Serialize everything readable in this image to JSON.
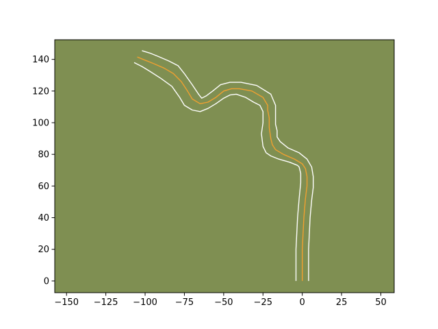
{
  "chart_data": {
    "type": "line",
    "title": "",
    "xlabel": "",
    "ylabel": "",
    "xlim": [
      -157.5,
      58.5
    ],
    "ylim": [
      -7.4,
      152.4
    ],
    "xticks": [
      -150,
      -125,
      -100,
      -75,
      -50,
      -25,
      0,
      25,
      50
    ],
    "yticks": [
      0,
      20,
      40,
      60,
      80,
      100,
      120,
      140
    ],
    "xtick_labels": [
      "−150",
      "−125",
      "−100",
      "−75",
      "−50",
      "−25",
      "0",
      "25",
      "50"
    ],
    "ytick_labels": [
      "0",
      "20",
      "40",
      "60",
      "80",
      "100",
      "120",
      "140"
    ],
    "grid": false,
    "legend": "none",
    "colors": {
      "background": "#7f8f52",
      "centerline": "#f0a030",
      "edges": "#ffffff",
      "frame": "#000000"
    },
    "series": [
      {
        "role": "centerline",
        "x": [
          0,
          0,
          1,
          2,
          3,
          3,
          2,
          0,
          -5,
          -12,
          -17,
          -19,
          -20,
          -21,
          -21,
          -22,
          -22,
          -25,
          -32,
          -40,
          -45,
          -50,
          -55,
          -60,
          -65,
          -70,
          -73,
          -77,
          -82,
          -88,
          -95,
          -100,
          -105
        ],
        "y": [
          0,
          20,
          40,
          52,
          60,
          66,
          71,
          74,
          77,
          80,
          83,
          86,
          90,
          97,
          103,
          108,
          111,
          116,
          120,
          121.5,
          121.5,
          120,
          116,
          113,
          112,
          115,
          120,
          126,
          131,
          134.5,
          137.5,
          139.5,
          141.5
        ]
      },
      {
        "role": "edge-right",
        "x": [
          4,
          4,
          5,
          6,
          7,
          7,
          6,
          3,
          -2,
          -9,
          -14,
          -16,
          -16,
          -17,
          -17,
          -17,
          -17,
          -20,
          -29,
          -39,
          -46,
          -52,
          -57,
          -61,
          -64,
          -66,
          -70,
          -75,
          -79,
          -85,
          -92,
          -97,
          -102
        ],
        "y": [
          0,
          20,
          40,
          51,
          59,
          66,
          72,
          77,
          81,
          84,
          88,
          91,
          95,
          99,
          103,
          107,
          111,
          118,
          123.5,
          125.5,
          125.5,
          124,
          120,
          117,
          115.5,
          118,
          124,
          131,
          136,
          139,
          142,
          144,
          145.5
        ]
      },
      {
        "role": "edge-left",
        "x": [
          -4,
          -4,
          -3,
          -2,
          -1,
          -1,
          -2,
          -3,
          -8,
          -15,
          -20,
          -23,
          -25,
          -26,
          -25,
          -25,
          -27,
          -31,
          -36,
          -42,
          -46,
          -50,
          -55,
          -60,
          -65,
          -70,
          -75,
          -78,
          -83,
          -90,
          -97,
          -102,
          -107
        ],
        "y": [
          0,
          20,
          40,
          52,
          62,
          68,
          72,
          73,
          75,
          77,
          79,
          81,
          85,
          93,
          100,
          107,
          111,
          113,
          116,
          118,
          117.5,
          115.5,
          112,
          109,
          107,
          108,
          111,
          116,
          123,
          128,
          132.5,
          135.5,
          138
        ]
      }
    ]
  }
}
